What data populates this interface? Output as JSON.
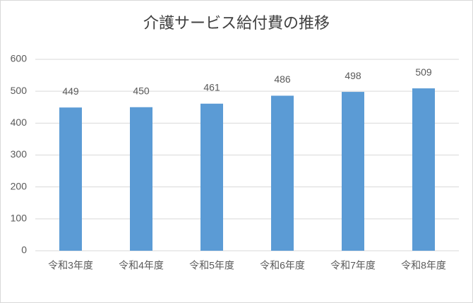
{
  "chart_data": {
    "type": "bar",
    "title": "介護サービス給付費の推移",
    "categories": [
      "令和3年度",
      "令和4年度",
      "令和5年度",
      "令和6年度",
      "令和7年度",
      "令和8年度"
    ],
    "values": [
      449,
      450,
      461,
      486,
      498,
      509
    ],
    "color": "#5b9bd5",
    "ylim": [
      0,
      600
    ],
    "yticks": [
      0,
      100,
      200,
      300,
      400,
      500,
      600
    ],
    "grid": true
  }
}
